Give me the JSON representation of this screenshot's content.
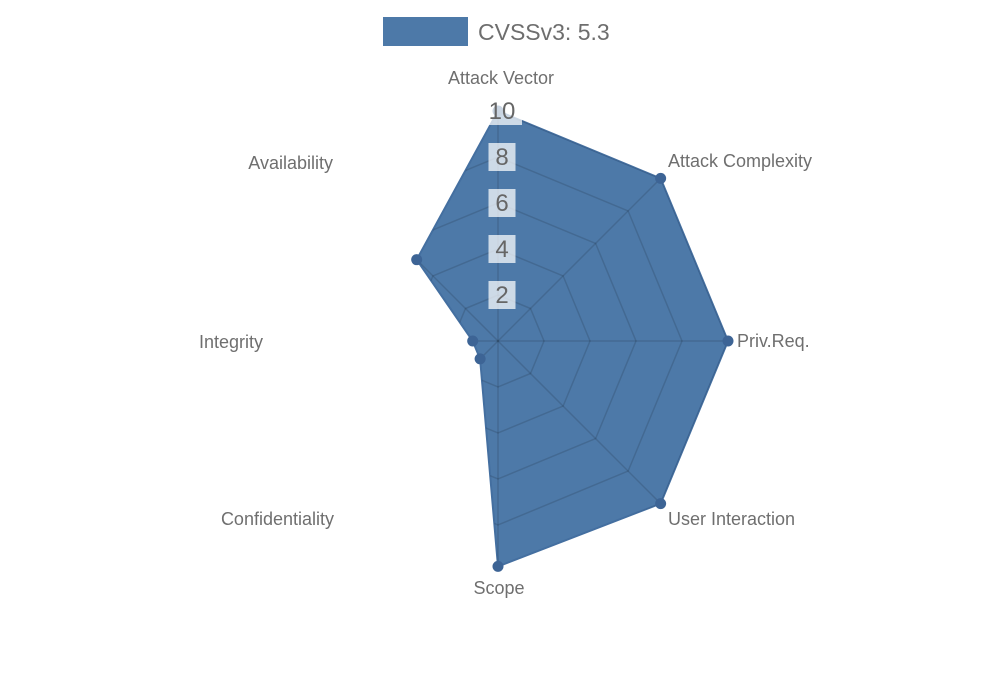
{
  "legend": {
    "label": "CVSSv3: 5.3"
  },
  "chart_data": {
    "type": "radar",
    "title": "",
    "legend_position": "top",
    "axes": [
      "Attack Vector",
      "Attack Complexity",
      "Priv.Req.",
      "User Interaction",
      "Scope",
      "Confidentiality",
      "Integrity",
      "Availability"
    ],
    "series": [
      {
        "name": "CVSSv3: 5.3",
        "values": [
          10,
          10,
          10,
          10,
          9.8,
          1.1,
          1.1,
          5
        ]
      }
    ],
    "scale": {
      "min": 0,
      "max": 10,
      "ticks": [
        2,
        4,
        6,
        8,
        10
      ]
    },
    "grid": true,
    "colors": {
      "fill": "#4d79a8",
      "border": "#446fa0",
      "point": "#3d6495",
      "grid_line": "rgba(0,0,0,0.13)",
      "tick_text": "#666666",
      "tick_backdrop": "rgba(255,255,255,0.72)",
      "axis_label_text": "#6f6f6f",
      "legend_text": "#6e6e6e"
    }
  }
}
